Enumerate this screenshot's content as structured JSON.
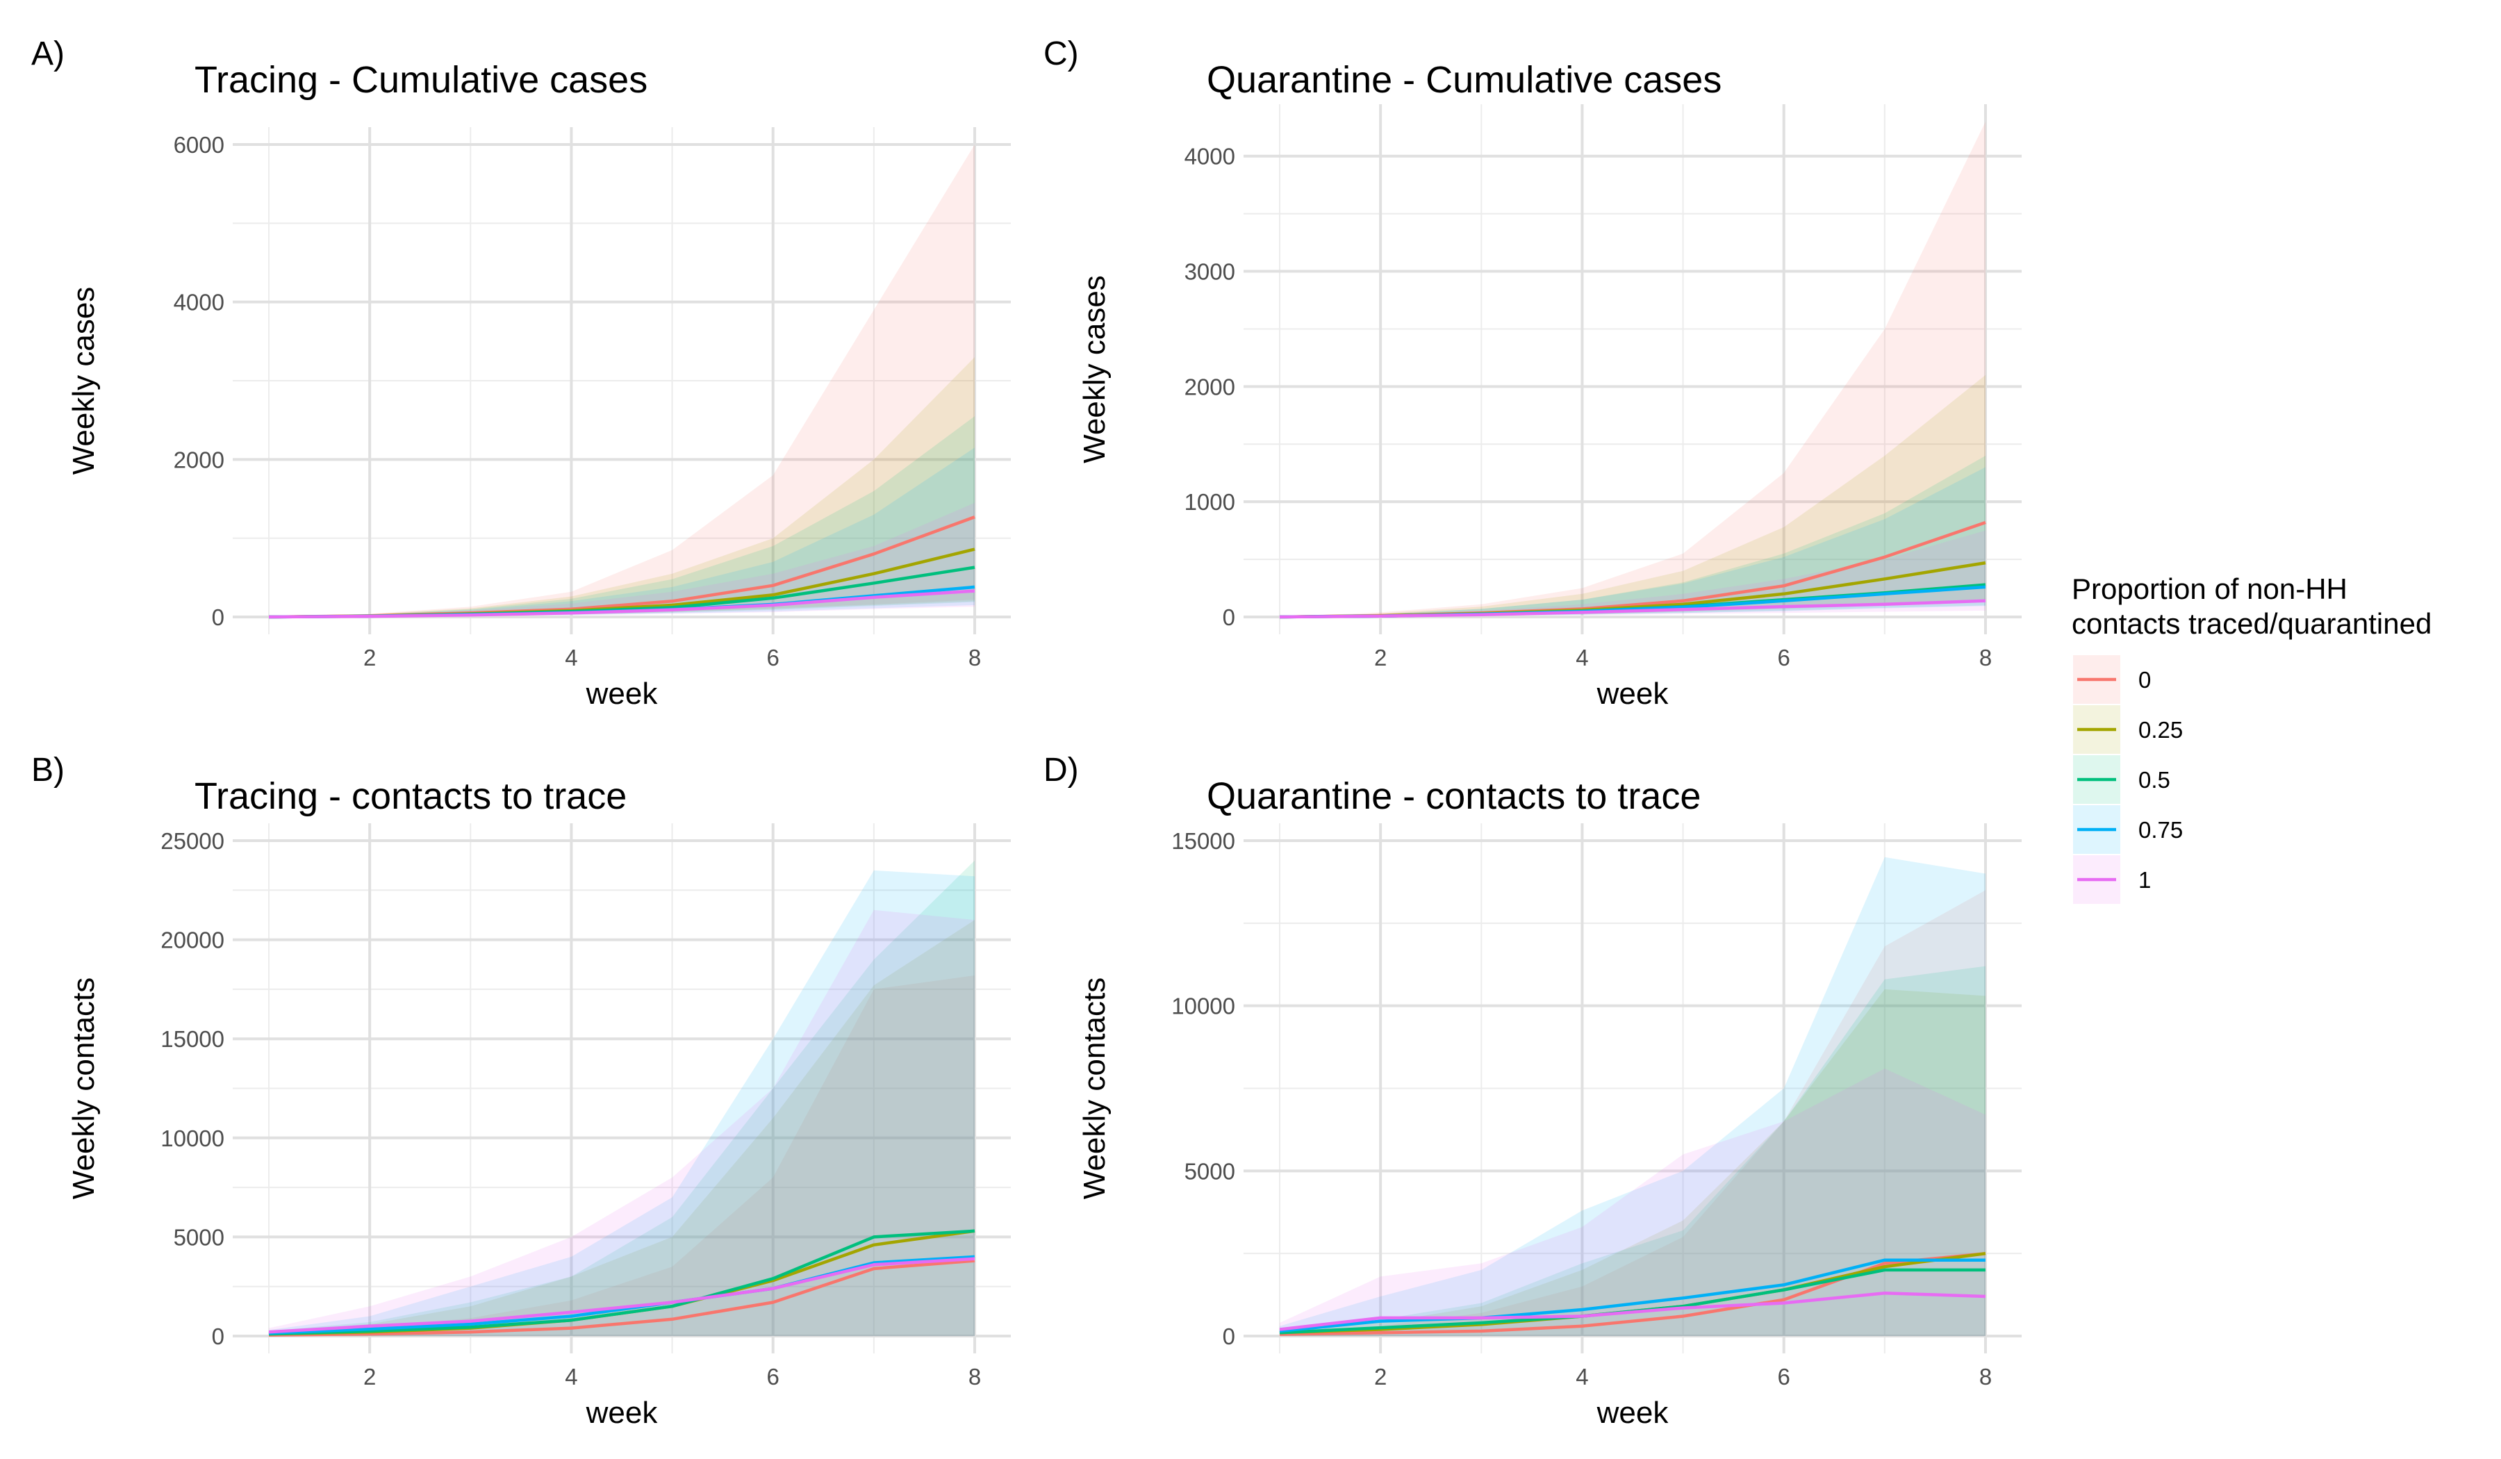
{
  "legend": {
    "title_lines": [
      "Proportion of non-HH",
      "contacts traced/quarantined"
    ],
    "placement": "right",
    "entries": [
      {
        "label": "0",
        "color": "#F8766D"
      },
      {
        "label": "0.25",
        "color": "#A3A500"
      },
      {
        "label": "0.5",
        "color": "#00BF7D"
      },
      {
        "label": "0.75",
        "color": "#00B0F6"
      },
      {
        "label": "1",
        "color": "#E76BF3"
      }
    ]
  },
  "chart_data": [
    {
      "panel": "A)",
      "type": "line",
      "title": "Tracing - Cumulative cases",
      "xlabel": "week",
      "ylabel": "Weekly cases",
      "xlim": [
        1,
        8
      ],
      "ylim": [
        0,
        6000
      ],
      "xticks": [
        2,
        4,
        6,
        8
      ],
      "yticks": [
        0,
        2000,
        4000,
        6000
      ],
      "grid": true,
      "x": [
        1,
        2,
        3,
        4,
        5,
        6,
        7,
        8
      ],
      "series": [
        {
          "name": "0",
          "color": "#F8766D",
          "values": [
            0,
            15,
            50,
            100,
            200,
            400,
            800,
            1270
          ],
          "lower": [
            0,
            5,
            20,
            40,
            70,
            110,
            160,
            220
          ],
          "upper": [
            0,
            40,
            130,
            320,
            850,
            1800,
            3900,
            6000
          ]
        },
        {
          "name": "0.25",
          "color": "#A3A500",
          "values": [
            0,
            12,
            40,
            80,
            150,
            280,
            550,
            860
          ],
          "lower": [
            0,
            5,
            15,
            30,
            60,
            100,
            150,
            200
          ],
          "upper": [
            0,
            35,
            110,
            260,
            550,
            1000,
            2000,
            3300
          ]
        },
        {
          "name": "0.5",
          "color": "#00BF7D",
          "values": [
            0,
            10,
            35,
            70,
            120,
            240,
            430,
            630
          ],
          "lower": [
            0,
            5,
            15,
            30,
            55,
            90,
            140,
            190
          ],
          "upper": [
            0,
            30,
            100,
            230,
            480,
            900,
            1600,
            2550
          ]
        },
        {
          "name": "0.75",
          "color": "#00B0F6",
          "values": [
            0,
            10,
            30,
            55,
            95,
            160,
            270,
            380
          ],
          "lower": [
            0,
            5,
            12,
            25,
            45,
            70,
            110,
            150
          ],
          "upper": [
            0,
            30,
            90,
            200,
            380,
            700,
            1300,
            2150
          ]
        },
        {
          "name": "1",
          "color": "#E76BF3",
          "values": [
            0,
            8,
            25,
            50,
            90,
            150,
            250,
            330
          ],
          "lower": [
            0,
            4,
            10,
            20,
            40,
            60,
            100,
            130
          ],
          "upper": [
            0,
            25,
            80,
            170,
            320,
            550,
            900,
            1450
          ]
        }
      ]
    },
    {
      "panel": "C)",
      "type": "line",
      "title": "Quarantine - Cumulative cases",
      "xlabel": "week",
      "ylabel": "Weekly cases",
      "xlim": [
        1,
        8
      ],
      "ylim": [
        0,
        4300
      ],
      "xticks": [
        2,
        4,
        6,
        8
      ],
      "yticks": [
        0,
        1000,
        2000,
        3000,
        4000
      ],
      "grid": true,
      "x": [
        1,
        2,
        3,
        4,
        5,
        6,
        7,
        8
      ],
      "series": [
        {
          "name": "0",
          "color": "#F8766D",
          "values": [
            0,
            12,
            35,
            70,
            140,
            270,
            520,
            820
          ],
          "lower": [
            0,
            5,
            15,
            30,
            50,
            80,
            110,
            150
          ],
          "upper": [
            0,
            40,
            110,
            250,
            550,
            1250,
            2500,
            4300
          ]
        },
        {
          "name": "0.25",
          "color": "#A3A500",
          "values": [
            0,
            10,
            30,
            60,
            110,
            200,
            330,
            470
          ],
          "lower": [
            0,
            5,
            12,
            25,
            45,
            70,
            100,
            130
          ],
          "upper": [
            0,
            30,
            90,
            200,
            400,
            780,
            1400,
            2100
          ]
        },
        {
          "name": "0.5",
          "color": "#00BF7D",
          "values": [
            0,
            8,
            25,
            50,
            90,
            150,
            210,
            280
          ],
          "lower": [
            0,
            4,
            10,
            20,
            35,
            55,
            80,
            100
          ],
          "upper": [
            0,
            25,
            70,
            150,
            300,
            550,
            900,
            1400
          ]
        },
        {
          "name": "0.75",
          "color": "#00B0F6",
          "values": [
            0,
            8,
            25,
            48,
            85,
            140,
            200,
            260
          ],
          "lower": [
            0,
            4,
            10,
            20,
            35,
            50,
            75,
            95
          ],
          "upper": [
            0,
            25,
            70,
            150,
            290,
            520,
            850,
            1300
          ]
        },
        {
          "name": "1",
          "color": "#E76BF3",
          "values": [
            0,
            7,
            20,
            40,
            65,
            90,
            110,
            140
          ],
          "lower": [
            0,
            3,
            8,
            15,
            25,
            35,
            45,
            55
          ],
          "upper": [
            0,
            20,
            55,
            110,
            200,
            330,
            500,
            750
          ]
        }
      ]
    },
    {
      "panel": "B)",
      "type": "line",
      "title": "Tracing - contacts to trace",
      "xlabel": "week",
      "ylabel": "Weekly contacts",
      "xlim": [
        1,
        8
      ],
      "ylim": [
        0,
        25000
      ],
      "xticks": [
        2,
        4,
        6,
        8
      ],
      "yticks": [
        0,
        5000,
        10000,
        15000,
        20000,
        25000
      ],
      "grid": true,
      "x": [
        1,
        2,
        3,
        4,
        5,
        6,
        7,
        8
      ],
      "series": [
        {
          "name": "0",
          "color": "#F8766D",
          "values": [
            50,
            100,
            200,
            400,
            850,
            1700,
            3400,
            3800
          ],
          "lower": [
            0,
            0,
            0,
            0,
            0,
            0,
            0,
            0
          ],
          "upper": [
            150,
            400,
            900,
            1800,
            3500,
            8000,
            17500,
            18200
          ]
        },
        {
          "name": "0.25",
          "color": "#A3A500",
          "values": [
            100,
            200,
            400,
            800,
            1500,
            2800,
            4600,
            5300
          ],
          "lower": [
            0,
            0,
            0,
            0,
            0,
            0,
            0,
            0
          ],
          "upper": [
            200,
            600,
            1500,
            3000,
            5000,
            11000,
            17700,
            21000
          ]
        },
        {
          "name": "0.5",
          "color": "#00BF7D",
          "values": [
            100,
            250,
            450,
            800,
            1500,
            2900,
            5000,
            5300
          ],
          "lower": [
            0,
            0,
            0,
            0,
            0,
            0,
            0,
            0
          ],
          "upper": [
            250,
            700,
            1700,
            3000,
            6000,
            12500,
            19000,
            24000
          ]
        },
        {
          "name": "0.75",
          "color": "#00B0F6",
          "values": [
            150,
            350,
            600,
            1000,
            1700,
            2400,
            3700,
            4000
          ],
          "lower": [
            0,
            0,
            0,
            0,
            0,
            0,
            0,
            0
          ],
          "upper": [
            300,
            1000,
            2500,
            4000,
            7000,
            15000,
            23500,
            23200
          ]
        },
        {
          "name": "1",
          "color": "#E76BF3",
          "values": [
            200,
            500,
            750,
            1200,
            1700,
            2400,
            3600,
            3900
          ],
          "lower": [
            0,
            0,
            0,
            0,
            0,
            0,
            0,
            0
          ],
          "upper": [
            400,
            1500,
            3000,
            5000,
            8000,
            12500,
            21500,
            21000
          ]
        }
      ]
    },
    {
      "panel": "D)",
      "type": "line",
      "title": "Quarantine - contacts to trace",
      "xlabel": "week",
      "ylabel": "Weekly contacts",
      "xlim": [
        1,
        8
      ],
      "ylim": [
        0,
        15000
      ],
      "xticks": [
        2,
        4,
        6,
        8
      ],
      "yticks": [
        0,
        5000,
        10000,
        15000
      ],
      "grid": true,
      "x": [
        1,
        2,
        3,
        4,
        5,
        6,
        7,
        8
      ],
      "series": [
        {
          "name": "0",
          "color": "#F8766D",
          "values": [
            50,
            100,
            150,
            300,
            600,
            1100,
            2200,
            2500
          ],
          "lower": [
            0,
            0,
            0,
            0,
            0,
            0,
            0,
            0
          ],
          "upper": [
            100,
            300,
            700,
            1500,
            3000,
            6500,
            11800,
            13500
          ]
        },
        {
          "name": "0.25",
          "color": "#A3A500",
          "values": [
            100,
            200,
            350,
            600,
            900,
            1400,
            2100,
            2500
          ],
          "lower": [
            0,
            0,
            0,
            0,
            0,
            0,
            0,
            0
          ],
          "upper": [
            150,
            400,
            900,
            2000,
            3500,
            6500,
            10500,
            10300
          ]
        },
        {
          "name": "0.5",
          "color": "#00BF7D",
          "values": [
            100,
            250,
            400,
            600,
            900,
            1400,
            2000,
            2000
          ],
          "lower": [
            0,
            0,
            0,
            0,
            0,
            0,
            0,
            0
          ],
          "upper": [
            200,
            500,
            1000,
            2200,
            3200,
            6500,
            10800,
            11200
          ]
        },
        {
          "name": "0.75",
          "color": "#00B0F6",
          "values": [
            150,
            450,
            550,
            800,
            1150,
            1550,
            2300,
            2300
          ],
          "lower": [
            0,
            0,
            0,
            0,
            0,
            0,
            0,
            0
          ],
          "upper": [
            300,
            1200,
            2000,
            3800,
            5000,
            7500,
            14500,
            14000
          ]
        },
        {
          "name": "1",
          "color": "#E76BF3",
          "values": [
            200,
            550,
            550,
            600,
            850,
            1000,
            1300,
            1200
          ],
          "lower": [
            0,
            0,
            0,
            0,
            0,
            0,
            0,
            0
          ],
          "upper": [
            400,
            1800,
            2200,
            3300,
            5500,
            6500,
            8100,
            6700
          ]
        }
      ]
    }
  ]
}
